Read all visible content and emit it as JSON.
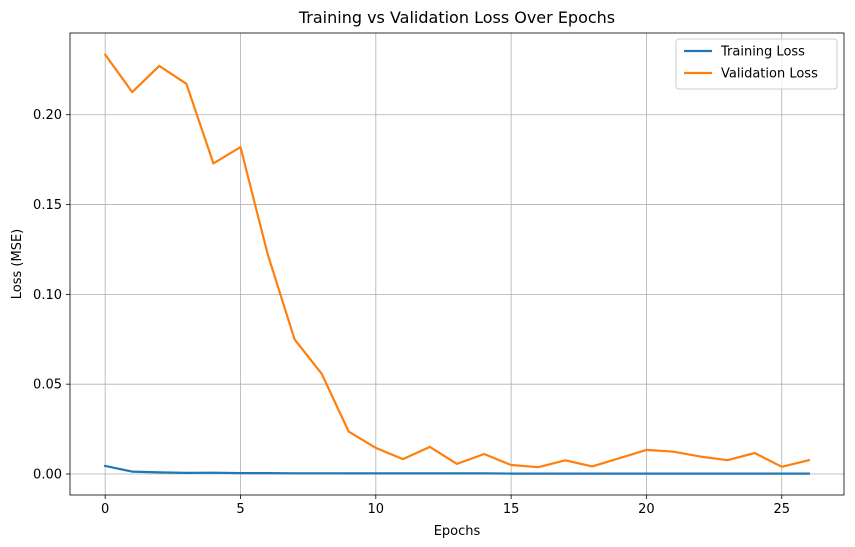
{
  "chart_data": {
    "type": "line",
    "title": "Training vs Validation Loss Over Epochs",
    "xlabel": "Epochs",
    "ylabel": "Loss (MSE)",
    "xlim": [
      -1.3,
      27.3
    ],
    "ylim": [
      -0.0117,
      0.2455
    ],
    "xticks": [
      0,
      5,
      10,
      15,
      20,
      25
    ],
    "yticks": [
      0.0,
      0.05,
      0.1,
      0.15,
      0.2
    ],
    "xtick_labels": [
      "0",
      "5",
      "10",
      "15",
      "20",
      "25"
    ],
    "ytick_labels": [
      "0.00",
      "0.05",
      "0.10",
      "0.15",
      "0.20"
    ],
    "grid": true,
    "legend_position": "top-right",
    "x": [
      0,
      1,
      2,
      3,
      4,
      5,
      6,
      7,
      8,
      9,
      10,
      11,
      12,
      13,
      14,
      15,
      16,
      17,
      18,
      19,
      20,
      21,
      22,
      23,
      24,
      25,
      26
    ],
    "series": [
      {
        "name": "Training Loss",
        "color": "#1f77b4",
        "values": [
          0.0045,
          0.0013,
          0.0009,
          0.0006,
          0.0007,
          0.0005,
          0.0005,
          0.0004,
          0.0004,
          0.0003,
          0.0003,
          0.0003,
          0.0003,
          0.0003,
          0.0003,
          0.0002,
          0.0002,
          0.0002,
          0.0002,
          0.0002,
          0.0002,
          0.0002,
          0.0002,
          0.0002,
          0.0002,
          0.0002,
          0.0002
        ]
      },
      {
        "name": "Validation Loss",
        "color": "#ff7f0e",
        "values": [
          0.2335,
          0.2126,
          0.2272,
          0.2172,
          0.1729,
          0.182,
          0.1225,
          0.0749,
          0.0558,
          0.0236,
          0.0145,
          0.0083,
          0.0151,
          0.0056,
          0.0111,
          0.005,
          0.0038,
          0.0076,
          0.0042,
          0.0088,
          0.0134,
          0.0124,
          0.0097,
          0.0077,
          0.0117,
          0.004,
          0.0077
        ]
      }
    ]
  }
}
